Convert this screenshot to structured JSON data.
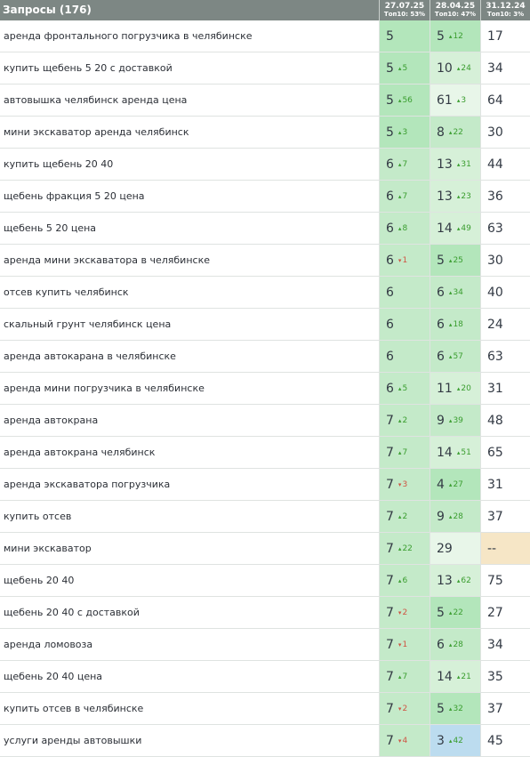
{
  "header": {
    "title": "Запросы (176)",
    "columns": [
      {
        "date": "27.07.25",
        "top": "Топ10: 53%"
      },
      {
        "date": "28.04.25",
        "top": "Топ10: 47%"
      },
      {
        "date": "31.12.24",
        "top": "Топ10: 3%"
      }
    ]
  },
  "colors": {
    "header_bg": "#7d8784",
    "green_strong": "#b3e6bb",
    "green_mid": "#c4eac9",
    "green_light": "#d6f0d8",
    "green_pale": "#e8f6e9",
    "blue": "#bcdcef",
    "beige": "#f6e6c6"
  },
  "rows": [
    {
      "query": "аренда фронтального погрузчика в челябинске",
      "c1": {
        "v": "5",
        "d": "",
        "dir": ""
      },
      "c2": {
        "v": "5",
        "d": "12",
        "dir": "up"
      },
      "c3": {
        "v": "17"
      }
    },
    {
      "query": "купить щебень 5 20 с доставкой",
      "c1": {
        "v": "5",
        "d": "5",
        "dir": "up"
      },
      "c2": {
        "v": "10",
        "d": "24",
        "dir": "up"
      },
      "c3": {
        "v": "34"
      }
    },
    {
      "query": "автовышка челябинск аренда цена",
      "c1": {
        "v": "5",
        "d": "56",
        "dir": "up"
      },
      "c2": {
        "v": "61",
        "d": "3",
        "dir": "up"
      },
      "c3": {
        "v": "64"
      }
    },
    {
      "query": "мини экскаватор аренда челябинск",
      "c1": {
        "v": "5",
        "d": "3",
        "dir": "up"
      },
      "c2": {
        "v": "8",
        "d": "22",
        "dir": "up"
      },
      "c3": {
        "v": "30"
      }
    },
    {
      "query": "купить щебень 20 40",
      "c1": {
        "v": "6",
        "d": "7",
        "dir": "up"
      },
      "c2": {
        "v": "13",
        "d": "31",
        "dir": "up"
      },
      "c3": {
        "v": "44"
      }
    },
    {
      "query": "щебень фракция 5 20 цена",
      "c1": {
        "v": "6",
        "d": "7",
        "dir": "up"
      },
      "c2": {
        "v": "13",
        "d": "23",
        "dir": "up"
      },
      "c3": {
        "v": "36"
      }
    },
    {
      "query": "щебень 5 20 цена",
      "c1": {
        "v": "6",
        "d": "8",
        "dir": "up"
      },
      "c2": {
        "v": "14",
        "d": "49",
        "dir": "up"
      },
      "c3": {
        "v": "63"
      }
    },
    {
      "query": "аренда мини экскаватора в челябинске",
      "c1": {
        "v": "6",
        "d": "1",
        "dir": "down"
      },
      "c2": {
        "v": "5",
        "d": "25",
        "dir": "up"
      },
      "c3": {
        "v": "30"
      }
    },
    {
      "query": "отсев купить челябинск",
      "c1": {
        "v": "6",
        "d": "",
        "dir": ""
      },
      "c2": {
        "v": "6",
        "d": "34",
        "dir": "up"
      },
      "c3": {
        "v": "40"
      }
    },
    {
      "query": "скальный грунт челябинск цена",
      "c1": {
        "v": "6",
        "d": "",
        "dir": ""
      },
      "c2": {
        "v": "6",
        "d": "18",
        "dir": "up"
      },
      "c3": {
        "v": "24"
      }
    },
    {
      "query": "аренда автокарана в челябинске",
      "c1": {
        "v": "6",
        "d": "",
        "dir": ""
      },
      "c2": {
        "v": "6",
        "d": "57",
        "dir": "up"
      },
      "c3": {
        "v": "63"
      }
    },
    {
      "query": "аренда мини погрузчика в челябинске",
      "c1": {
        "v": "6",
        "d": "5",
        "dir": "up"
      },
      "c2": {
        "v": "11",
        "d": "20",
        "dir": "up"
      },
      "c3": {
        "v": "31"
      }
    },
    {
      "query": "аренда автокрана",
      "c1": {
        "v": "7",
        "d": "2",
        "dir": "up"
      },
      "c2": {
        "v": "9",
        "d": "39",
        "dir": "up"
      },
      "c3": {
        "v": "48"
      }
    },
    {
      "query": "аренда автокрана челябинск",
      "c1": {
        "v": "7",
        "d": "7",
        "dir": "up"
      },
      "c2": {
        "v": "14",
        "d": "51",
        "dir": "up"
      },
      "c3": {
        "v": "65"
      }
    },
    {
      "query": "аренда экскаватора погрузчика",
      "c1": {
        "v": "7",
        "d": "3",
        "dir": "down"
      },
      "c2": {
        "v": "4",
        "d": "27",
        "dir": "up"
      },
      "c3": {
        "v": "31"
      }
    },
    {
      "query": "купить отсев",
      "c1": {
        "v": "7",
        "d": "2",
        "dir": "up"
      },
      "c2": {
        "v": "9",
        "d": "28",
        "dir": "up"
      },
      "c3": {
        "v": "37"
      }
    },
    {
      "query": "мини экскаватор",
      "c1": {
        "v": "7",
        "d": "22",
        "dir": "up"
      },
      "c2": {
        "v": "29",
        "d": "",
        "dir": ""
      },
      "c3": {
        "v": "--"
      }
    },
    {
      "query": "щебень 20 40",
      "c1": {
        "v": "7",
        "d": "6",
        "dir": "up"
      },
      "c2": {
        "v": "13",
        "d": "62",
        "dir": "up"
      },
      "c3": {
        "v": "75"
      }
    },
    {
      "query": "щебень 20 40 с доставкой",
      "c1": {
        "v": "7",
        "d": "2",
        "dir": "down"
      },
      "c2": {
        "v": "5",
        "d": "22",
        "dir": "up"
      },
      "c3": {
        "v": "27"
      }
    },
    {
      "query": "аренда ломовоза",
      "c1": {
        "v": "7",
        "d": "1",
        "dir": "down"
      },
      "c2": {
        "v": "6",
        "d": "28",
        "dir": "up"
      },
      "c3": {
        "v": "34"
      }
    },
    {
      "query": "щебень 20 40 цена",
      "c1": {
        "v": "7",
        "d": "7",
        "dir": "up"
      },
      "c2": {
        "v": "14",
        "d": "21",
        "dir": "up"
      },
      "c3": {
        "v": "35"
      }
    },
    {
      "query": "купить отсев в челябинске",
      "c1": {
        "v": "7",
        "d": "2",
        "dir": "down"
      },
      "c2": {
        "v": "5",
        "d": "32",
        "dir": "up"
      },
      "c3": {
        "v": "37"
      }
    },
    {
      "query": "услуги аренды автовышки",
      "c1": {
        "v": "7",
        "d": "4",
        "dir": "down"
      },
      "c2": {
        "v": "3",
        "d": "42",
        "dir": "up"
      },
      "c3": {
        "v": "45"
      }
    }
  ]
}
